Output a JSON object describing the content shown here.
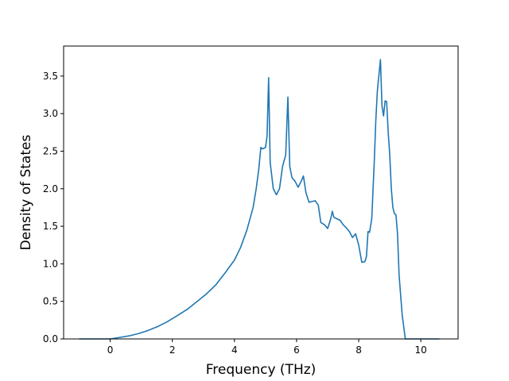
{
  "chart_data": {
    "type": "line",
    "title": "",
    "xlabel": "Frequency (THz)",
    "ylabel": "Density of States",
    "xlim": [
      -1.5,
      11.2
    ],
    "ylim": [
      0,
      3.9
    ],
    "xticks": [
      0,
      2,
      4,
      6,
      8,
      10
    ],
    "xtick_labels": [
      "0",
      "2",
      "4",
      "6",
      "8",
      "10"
    ],
    "yticks": [
      0.0,
      0.5,
      1.0,
      1.5,
      2.0,
      2.5,
      3.0,
      3.5
    ],
    "ytick_labels": [
      "0.0",
      "0.5",
      "1.0",
      "1.5",
      "2.0",
      "2.5",
      "3.0",
      "3.5"
    ],
    "grid": false,
    "series": [
      {
        "color": "#1f77b4",
        "x": [
          -1.0,
          -0.5,
          0.0,
          0.3,
          0.6,
          0.9,
          1.2,
          1.5,
          1.8,
          2.0,
          2.2,
          2.5,
          2.8,
          3.1,
          3.4,
          3.7,
          4.0,
          4.2,
          4.4,
          4.6,
          4.7,
          4.78,
          4.85,
          4.9,
          5.0,
          5.05,
          5.1,
          5.15,
          5.25,
          5.35,
          5.45,
          5.55,
          5.65,
          5.72,
          5.78,
          5.85,
          5.95,
          6.05,
          6.15,
          6.22,
          6.3,
          6.4,
          6.5,
          6.6,
          6.7,
          6.78,
          6.9,
          7.0,
          7.1,
          7.15,
          7.2,
          7.3,
          7.4,
          7.5,
          7.6,
          7.7,
          7.8,
          7.9,
          8.0,
          8.1,
          8.2,
          8.25,
          8.3,
          8.35,
          8.42,
          8.5,
          8.55,
          8.6,
          8.7,
          8.75,
          8.8,
          8.85,
          8.9,
          8.95,
          9.0,
          9.05,
          9.1,
          9.15,
          9.2,
          9.25,
          9.3,
          9.4,
          9.5,
          9.58,
          9.65,
          10.0,
          10.6
        ],
        "values": [
          0.0,
          0.0,
          0.0,
          0.02,
          0.04,
          0.07,
          0.11,
          0.16,
          0.22,
          0.27,
          0.32,
          0.4,
          0.5,
          0.6,
          0.72,
          0.88,
          1.05,
          1.22,
          1.45,
          1.75,
          2.0,
          2.25,
          2.55,
          2.53,
          2.55,
          2.7,
          3.48,
          2.35,
          2.0,
          1.92,
          2.0,
          2.3,
          2.45,
          3.22,
          2.3,
          2.15,
          2.1,
          2.02,
          2.1,
          2.17,
          1.95,
          1.82,
          1.83,
          1.84,
          1.78,
          1.55,
          1.52,
          1.47,
          1.6,
          1.7,
          1.62,
          1.6,
          1.58,
          1.52,
          1.48,
          1.43,
          1.35,
          1.4,
          1.25,
          1.02,
          1.03,
          1.1,
          1.43,
          1.42,
          1.6,
          2.35,
          2.9,
          3.3,
          3.72,
          3.1,
          2.97,
          3.17,
          3.16,
          2.75,
          2.45,
          2.0,
          1.75,
          1.67,
          1.65,
          1.4,
          0.85,
          0.32,
          0.0,
          0.0,
          0.0,
          0.0,
          0.0
        ]
      }
    ]
  }
}
